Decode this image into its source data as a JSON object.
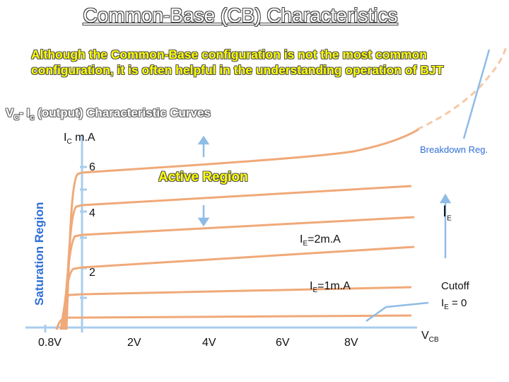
{
  "title": "Common-Base (CB) Characteristics",
  "intro": "Although the Common-Base configuration is not the most common configuration, it is often helpful in the understanding operation of BJT",
  "subtitle": {
    "main": "V",
    "sub1": "C",
    "mid": "- I",
    "sub2": "c",
    "rest": " (output) Characteristic Curves"
  },
  "axis": {
    "y_symbol": "I",
    "y_symbol_sub": "C",
    "y_unit": "m.A",
    "y_ticks": [
      "6",
      "4",
      "2"
    ],
    "x_ticks": [
      "0.8V",
      "2V",
      "4V",
      "6V",
      "8V"
    ],
    "x_symbol": "V",
    "x_symbol_sub": "CB"
  },
  "labels": {
    "breakdown": "Breakdown Reg.",
    "active": "Active Region",
    "saturation": "Saturation Region",
    "ie": "I",
    "ie_sub": "E",
    "ie2_pre": "I",
    "ie2_sub": "E",
    "ie2_post": "=2m.A",
    "ie1_pre": "I",
    "ie1_sub": "E",
    "ie1_post": "=1m.A",
    "cutoff": "Cutoff",
    "cutoff_ie_pre": "I",
    "cutoff_ie_sub": "E",
    "cutoff_ie_post": " = 0"
  },
  "colors": {
    "curve": "#f0a978",
    "axis": "#a8cdee",
    "arrow": "#8fbce6",
    "breakdown_dashed": "#f5c9a6",
    "label_blue": "#2f6fd6",
    "highlight": "#ffff00"
  }
}
